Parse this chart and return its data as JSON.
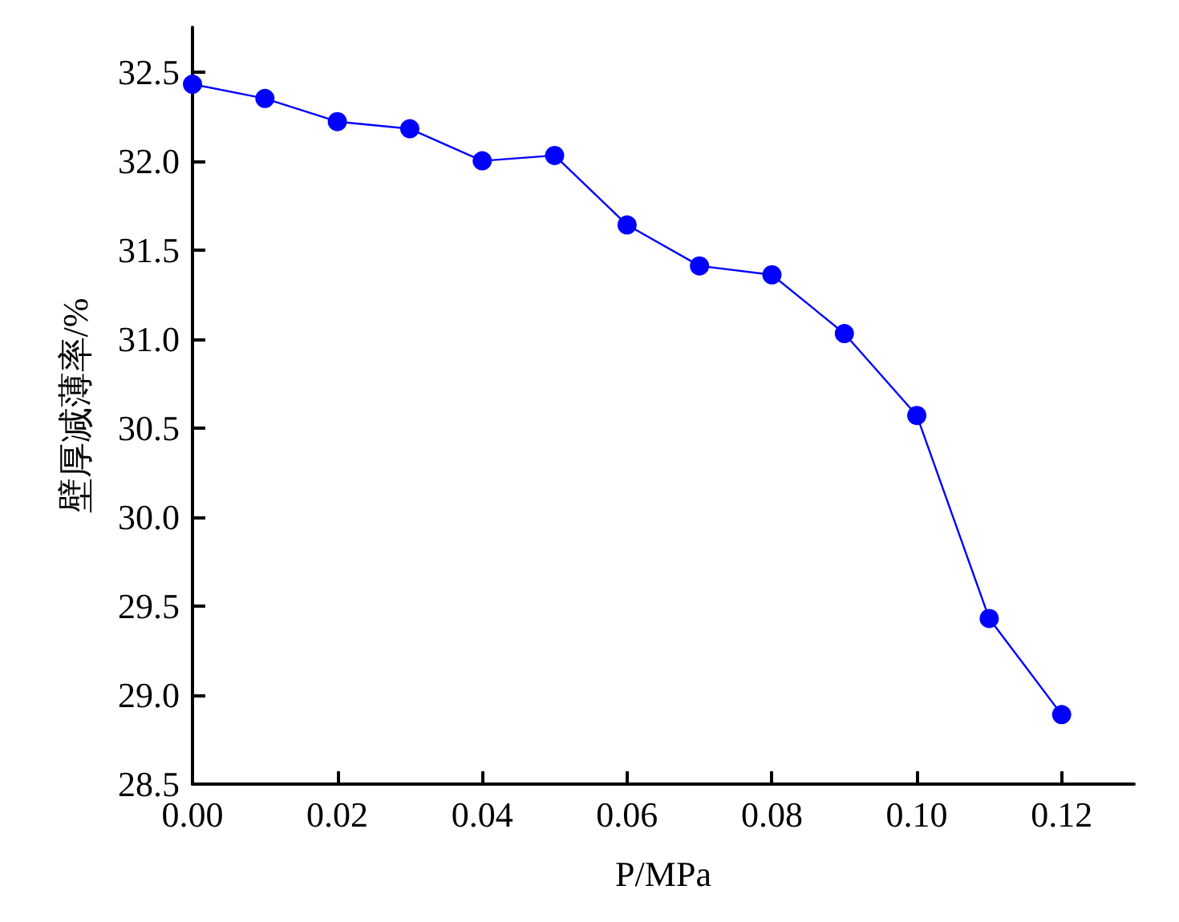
{
  "chart_data": {
    "type": "line",
    "xlabel": "P/MPa",
    "ylabel": "壁厚减薄率/%",
    "x": [
      0,
      0.01,
      0.02,
      0.03,
      0.04,
      0.05,
      0.06,
      0.07,
      0.08,
      0.09,
      0.1,
      0.11,
      0.12
    ],
    "series": [
      {
        "color": "#0000ff",
        "values": [
          32.43,
          32.35,
          32.22,
          32.18,
          32.0,
          32.03,
          31.64,
          31.41,
          31.36,
          31.03,
          30.57,
          29.43,
          28.89
        ]
      }
    ],
    "xlim": [
      0,
      0.13
    ],
    "xticks": [
      {
        "value": 0,
        "label": "0.00"
      },
      {
        "value": 0.02,
        "label": "0.02"
      },
      {
        "value": 0.04,
        "label": "0.04"
      },
      {
        "value": 0.06,
        "label": "0.06"
      },
      {
        "value": 0.08,
        "label": "0.08"
      },
      {
        "value": 0.1,
        "label": "0.10"
      },
      {
        "value": 0.12,
        "label": "0.12"
      }
    ],
    "ylim": [
      28.5,
      32.75
    ],
    "yticks": [
      {
        "value": 28.5,
        "label": "28.5"
      },
      {
        "value": 29,
        "label": "29.0"
      },
      {
        "value": 29.5,
        "label": "29.5"
      },
      {
        "value": 30,
        "label": "30.0"
      },
      {
        "value": 30.5,
        "label": "30.5"
      },
      {
        "value": 31,
        "label": "31.0"
      },
      {
        "value": 31.5,
        "label": "31.5"
      },
      {
        "value": 32,
        "label": "32.0"
      },
      {
        "value": 32.5,
        "label": "32.5"
      }
    ],
    "grid": false,
    "marker": "circle",
    "line_style": "solid"
  }
}
